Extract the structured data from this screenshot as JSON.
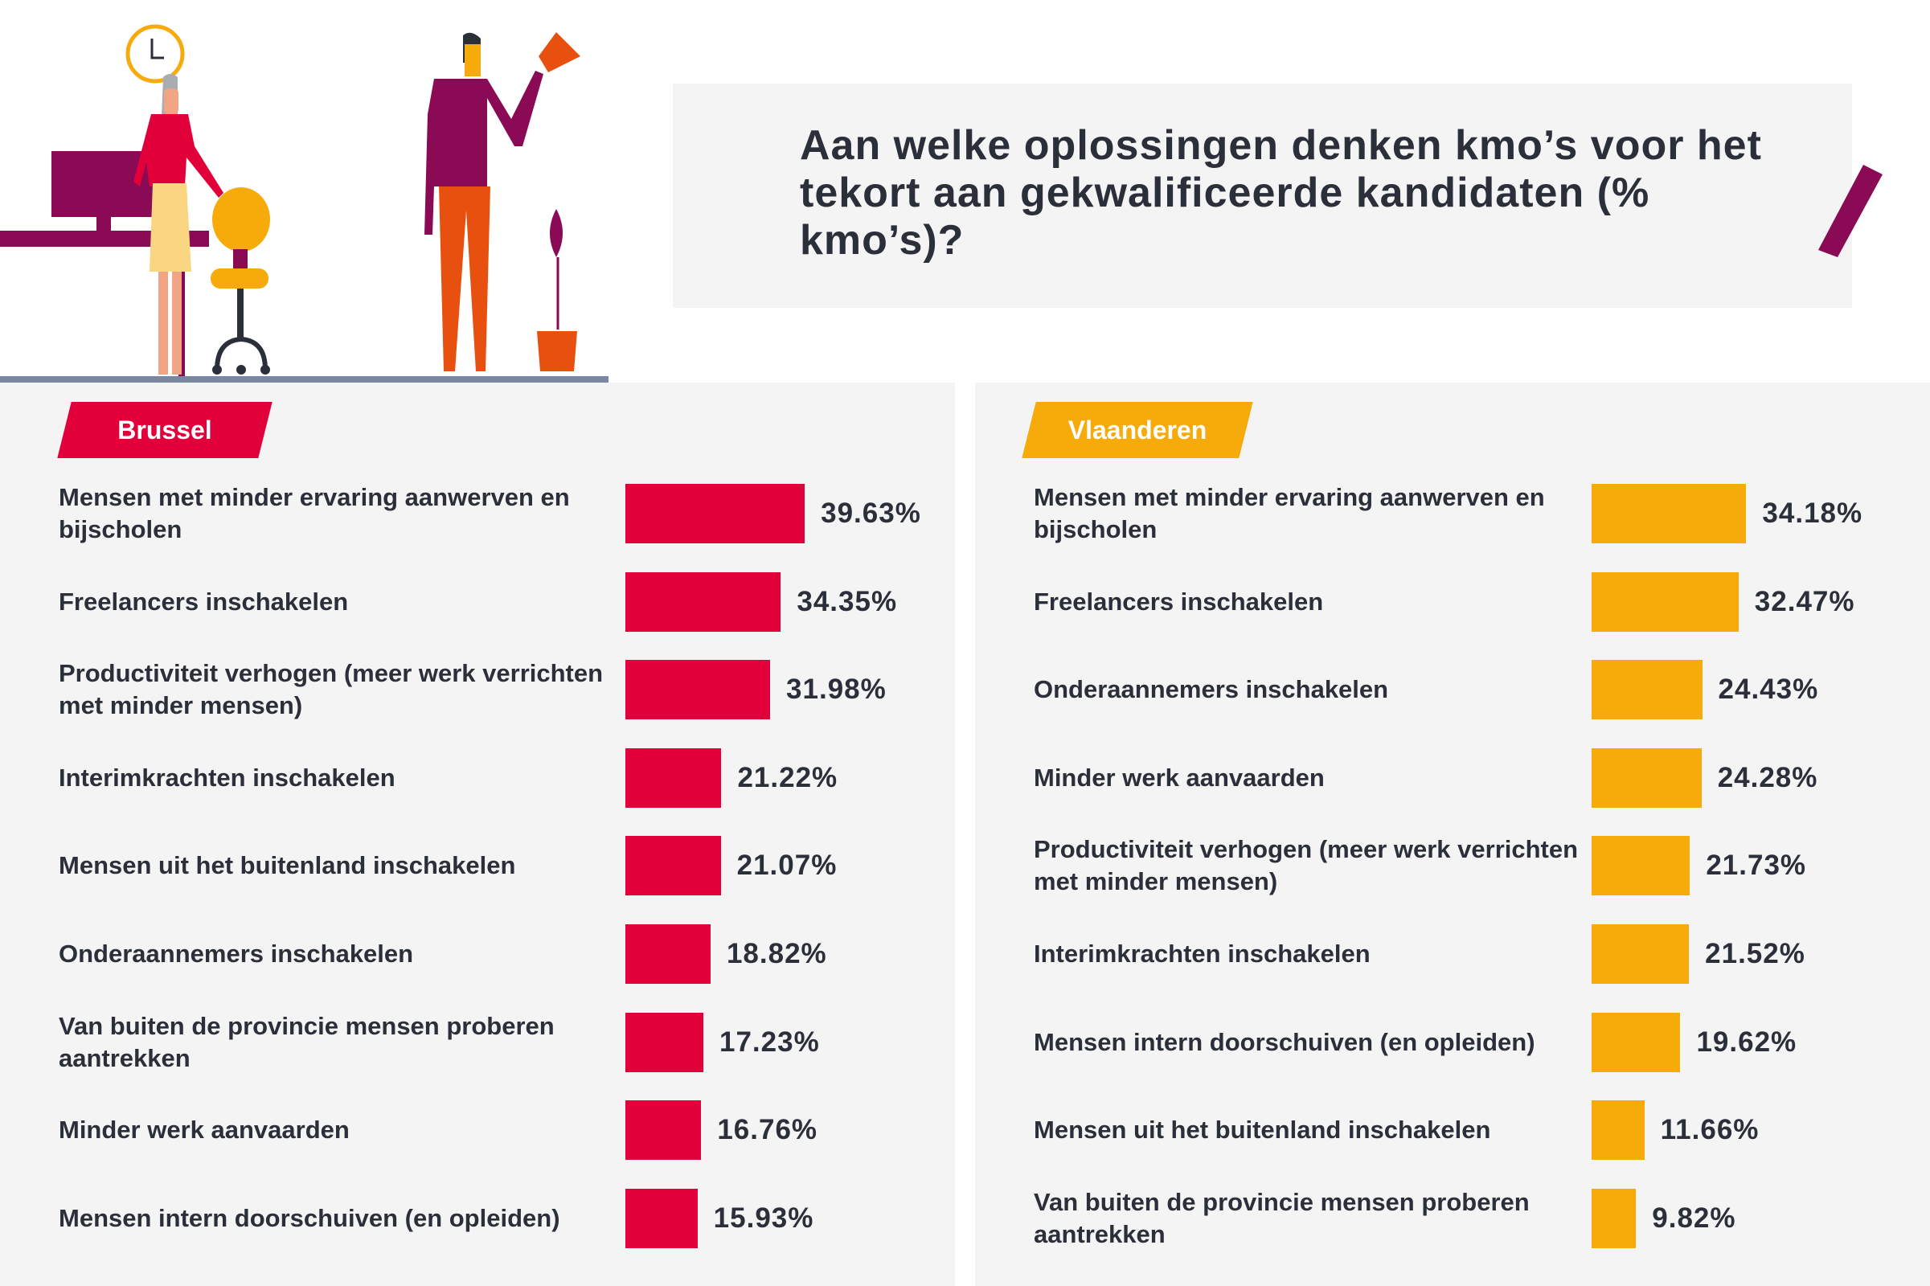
{
  "title": "Aan welke oplossingen denken kmo’s voor het tekort aan gekwalificeerde kandidaten (% kmo’s)?",
  "colors": {
    "brussel": "#e2003a",
    "vlaanderen": "#f6ab0a",
    "accent": "#8a0a55",
    "text": "#2b2f3a"
  },
  "chart_data": [
    {
      "type": "bar",
      "orientation": "horizontal",
      "title": "Brussel",
      "color": "#e2003a",
      "categories": [
        "Mensen met minder ervaring aanwerven en bijscholen",
        "Freelancers inschakelen",
        "Productiviteit verhogen (meer werk verrichten met minder mensen)",
        "Interimkrachten inschakelen",
        "Mensen uit het buitenland inschakelen",
        "Onderaannemers inschakelen",
        "Van buiten de provincie mensen proberen aantrekken",
        "Minder werk aanvaarden",
        "Mensen intern doorschuiven (en opleiden)"
      ],
      "values": [
        39.63,
        34.35,
        31.98,
        21.22,
        21.07,
        18.82,
        17.23,
        16.76,
        15.93
      ],
      "labels": [
        "39.63%",
        "34.35%",
        "31.98%",
        "21.22%",
        "21.07%",
        "18.82%",
        "17.23%",
        "16.76%",
        "15.93%"
      ],
      "grid": false
    },
    {
      "type": "bar",
      "orientation": "horizontal",
      "title": "Vlaanderen",
      "color": "#f6ab0a",
      "categories": [
        "Mensen met minder ervaring aanwerven en bijscholen",
        "Freelancers inschakelen",
        "Onderaannemers inschakelen",
        "Minder werk aanvaarden",
        "Productiviteit verhogen (meer werk verrichten met minder mensen)",
        "Interimkrachten inschakelen",
        "Mensen intern doorschuiven (en opleiden)",
        "Mensen uit het buitenland inschakelen",
        "Van buiten de provincie mensen proberen aantrekken"
      ],
      "values": [
        34.18,
        32.47,
        24.43,
        24.28,
        21.73,
        21.52,
        19.62,
        11.66,
        9.82
      ],
      "labels": [
        "34.18%",
        "32.47%",
        "24.43%",
        "24.28%",
        "21.73%",
        "21.52%",
        "19.62%",
        "11.66%",
        "9.82%"
      ],
      "grid": false
    }
  ]
}
